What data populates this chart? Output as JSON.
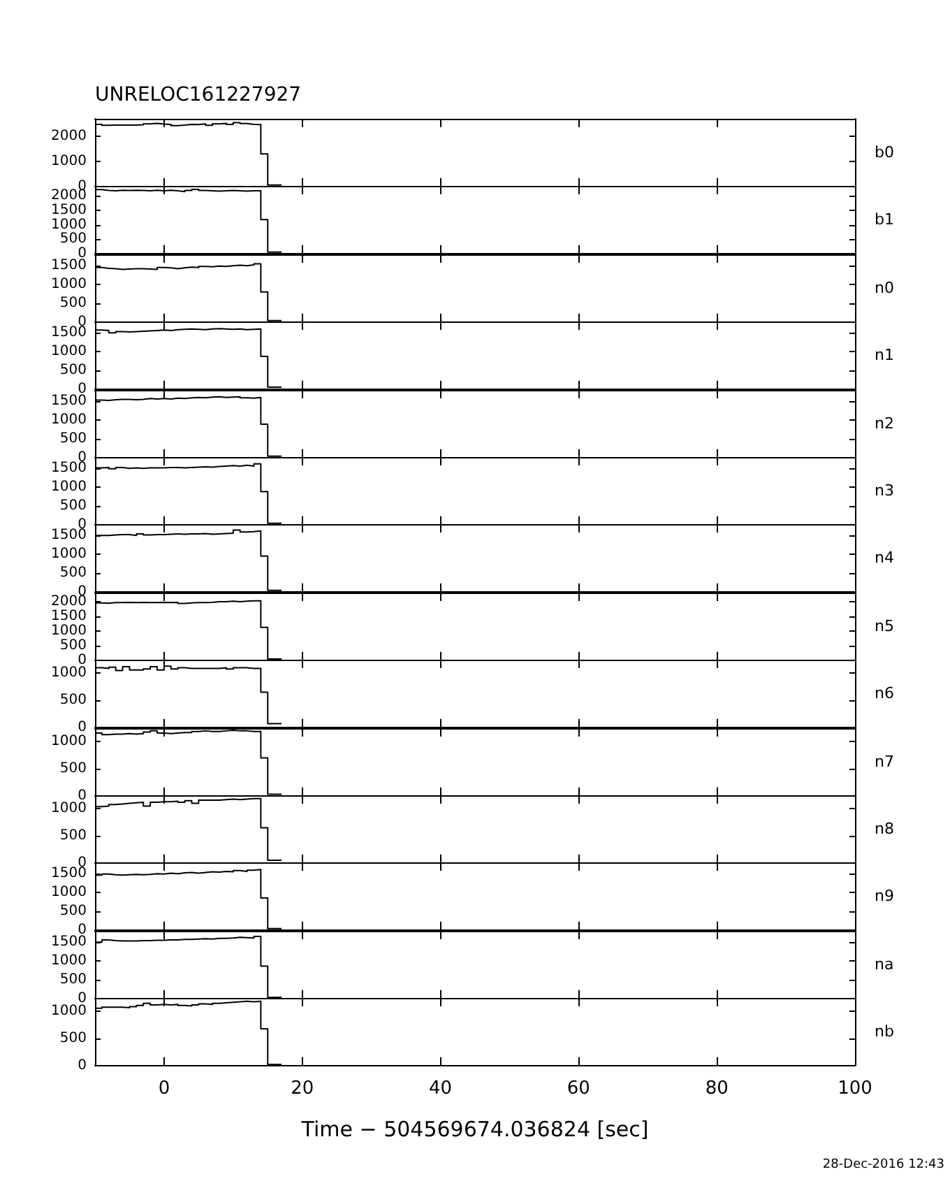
{
  "chart_data": [
    {
      "type": "histogram",
      "title": "UNRELOC161227927",
      "ylabel": "b0",
      "color": "#000000",
      "bins": [
        -10,
        -9,
        -8,
        -7,
        -6,
        -5,
        -4,
        -3,
        -2,
        -1,
        0,
        1,
        2,
        3,
        4,
        5,
        6,
        7,
        8,
        9,
        10,
        11,
        12,
        13,
        14,
        15,
        16,
        17
      ],
      "values": [
        2480,
        2440,
        2450,
        2450,
        2450,
        2450,
        2460,
        2500,
        2520,
        2490,
        2470,
        2430,
        2450,
        2480,
        2470,
        2500,
        2440,
        2500,
        2520,
        2480,
        2550,
        2510,
        2480,
        2470,
        1300,
        60,
        60
      ],
      "xlim": [
        -10,
        100
      ],
      "xticks": [
        0,
        20,
        40,
        60,
        80,
        100
      ],
      "ylim": [
        0,
        2700
      ],
      "yticks": [
        0,
        1000,
        2000
      ],
      "tick_labels": "y"
    },
    {
      "type": "histogram",
      "ylabel": "b1",
      "color": "#000000",
      "bins": [
        -10,
        -9,
        -8,
        -7,
        -6,
        -5,
        -4,
        -3,
        -2,
        -1,
        0,
        1,
        2,
        3,
        4,
        5,
        6,
        7,
        8,
        9,
        10,
        11,
        12,
        13,
        14,
        15,
        16,
        17
      ],
      "values": [
        2220,
        2190,
        2180,
        2200,
        2190,
        2200,
        2190,
        2180,
        2200,
        2180,
        2200,
        2180,
        2150,
        2190,
        2230,
        2190,
        2180,
        2170,
        2180,
        2190,
        2180,
        2170,
        2180,
        2180,
        1180,
        50,
        50
      ],
      "xlim": [
        -10,
        100
      ],
      "xticks": [
        0,
        20,
        40,
        60,
        80,
        100
      ],
      "ylim": [
        0,
        2350
      ],
      "yticks": [
        0,
        500,
        1000,
        1500,
        2000
      ],
      "tick_labels": "y"
    },
    {
      "type": "histogram",
      "ylabel": "n0",
      "color": "#000000",
      "bins": [
        -10,
        -9,
        -8,
        -7,
        -6,
        -5,
        -4,
        -3,
        -2,
        -1,
        0,
        1,
        2,
        3,
        4,
        5,
        6,
        7,
        8,
        9,
        10,
        11,
        12,
        13,
        14,
        15,
        16,
        17
      ],
      "values": [
        1450,
        1430,
        1420,
        1400,
        1410,
        1420,
        1420,
        1410,
        1400,
        1450,
        1440,
        1420,
        1440,
        1460,
        1450,
        1480,
        1470,
        1490,
        1480,
        1500,
        1510,
        1500,
        1520,
        1550,
        800,
        40,
        40
      ],
      "xlim": [
        -10,
        100
      ],
      "xticks": [
        0,
        20,
        40,
        60,
        80,
        100
      ],
      "ylim": [
        0,
        1800
      ],
      "yticks": [
        0,
        500,
        1000,
        1500
      ],
      "tick_labels": "y"
    },
    {
      "type": "histogram",
      "ylabel": "n1",
      "color": "#000000",
      "bins": [
        -10,
        -9,
        -8,
        -7,
        -6,
        -5,
        -4,
        -3,
        -2,
        -1,
        0,
        1,
        2,
        3,
        4,
        5,
        6,
        7,
        8,
        9,
        10,
        11,
        12,
        13,
        14,
        15,
        16,
        17
      ],
      "values": [
        1570,
        1560,
        1500,
        1530,
        1520,
        1530,
        1540,
        1550,
        1560,
        1570,
        1560,
        1580,
        1590,
        1600,
        1590,
        1580,
        1600,
        1610,
        1600,
        1590,
        1600,
        1580,
        1590,
        1600,
        870,
        50,
        50
      ],
      "xlim": [
        -10,
        100
      ],
      "xticks": [
        0,
        20,
        40,
        60,
        80,
        100
      ],
      "ylim": [
        0,
        1800
      ],
      "yticks": [
        0,
        500,
        1000,
        1500
      ],
      "tick_labels": "y"
    },
    {
      "type": "histogram",
      "ylabel": "n2",
      "color": "#000000",
      "bins": [
        -10,
        -9,
        -8,
        -7,
        -6,
        -5,
        -4,
        -3,
        -2,
        -1,
        0,
        1,
        2,
        3,
        4,
        5,
        6,
        7,
        8,
        9,
        10,
        11,
        12,
        13,
        14,
        15,
        16,
        17
      ],
      "values": [
        1530,
        1520,
        1540,
        1550,
        1550,
        1540,
        1550,
        1570,
        1560,
        1570,
        1560,
        1580,
        1570,
        1590,
        1600,
        1590,
        1610,
        1620,
        1600,
        1610,
        1620,
        1590,
        1580,
        1600,
        890,
        40,
        40
      ],
      "xlim": [
        -10,
        100
      ],
      "xticks": [
        0,
        20,
        40,
        60,
        80,
        100
      ],
      "ylim": [
        0,
        1800
      ],
      "yticks": [
        0,
        500,
        1000,
        1500
      ],
      "tick_labels": "y"
    },
    {
      "type": "histogram",
      "ylabel": "n3",
      "color": "#000000",
      "bins": [
        -10,
        -9,
        -8,
        -7,
        -6,
        -5,
        -4,
        -3,
        -2,
        -1,
        0,
        1,
        2,
        3,
        4,
        5,
        6,
        7,
        8,
        9,
        10,
        11,
        12,
        13,
        14,
        15,
        16,
        17
      ],
      "values": [
        1510,
        1520,
        1490,
        1520,
        1500,
        1510,
        1500,
        1510,
        1510,
        1510,
        1520,
        1520,
        1510,
        1520,
        1530,
        1540,
        1530,
        1550,
        1560,
        1570,
        1560,
        1580,
        1560,
        1620,
        880,
        40,
        40
      ],
      "xlim": [
        -10,
        100
      ],
      "xticks": [
        0,
        20,
        40,
        60,
        80,
        100
      ],
      "ylim": [
        0,
        1800
      ],
      "yticks": [
        0,
        500,
        1000,
        1500
      ],
      "tick_labels": "y"
    },
    {
      "type": "histogram",
      "ylabel": "n4",
      "color": "#000000",
      "bins": [
        -10,
        -9,
        -8,
        -7,
        -6,
        -5,
        -4,
        -3,
        -2,
        -1,
        0,
        1,
        2,
        3,
        4,
        5,
        6,
        7,
        8,
        9,
        10,
        11,
        12,
        13,
        14,
        15,
        16,
        17
      ],
      "values": [
        1500,
        1500,
        1510,
        1520,
        1520,
        1500,
        1540,
        1510,
        1520,
        1520,
        1530,
        1540,
        1530,
        1540,
        1540,
        1550,
        1530,
        1540,
        1550,
        1560,
        1640,
        1590,
        1600,
        1620,
        950,
        40,
        40
      ],
      "xlim": [
        -10,
        100
      ],
      "xticks": [
        0,
        20,
        40,
        60,
        80,
        100
      ],
      "ylim": [
        0,
        1800
      ],
      "yticks": [
        0,
        500,
        1000,
        1500
      ],
      "tick_labels": "y"
    },
    {
      "type": "histogram",
      "ylabel": "n5",
      "color": "#000000",
      "bins": [
        -10,
        -9,
        -8,
        -7,
        -6,
        -5,
        -4,
        -3,
        -2,
        -1,
        0,
        1,
        2,
        3,
        4,
        5,
        6,
        7,
        8,
        9,
        10,
        11,
        12,
        13,
        14,
        15,
        16,
        17
      ],
      "values": [
        1950,
        1940,
        1960,
        1960,
        1970,
        1960,
        1970,
        1960,
        1960,
        1970,
        1960,
        1970,
        1930,
        1950,
        1960,
        1960,
        1970,
        1990,
        1990,
        2010,
        1990,
        2010,
        2020,
        2020,
        1120,
        40,
        40
      ],
      "xlim": [
        -10,
        100
      ],
      "xticks": [
        0,
        20,
        40,
        60,
        80,
        100
      ],
      "ylim": [
        0,
        2300
      ],
      "yticks": [
        0,
        500,
        1000,
        1500,
        2000
      ],
      "tick_labels": "y"
    },
    {
      "type": "histogram",
      "ylabel": "n6",
      "color": "#000000",
      "bins": [
        -10,
        -9,
        -8,
        -7,
        -6,
        -5,
        -4,
        -3,
        -2,
        -1,
        0,
        1,
        2,
        3,
        4,
        5,
        6,
        7,
        8,
        9,
        10,
        11,
        12,
        13,
        14,
        15,
        16,
        17
      ],
      "values": [
        1100,
        1090,
        1110,
        1050,
        1120,
        1060,
        1060,
        1080,
        1120,
        1060,
        1130,
        1080,
        1100,
        1090,
        1090,
        1090,
        1090,
        1090,
        1100,
        1080,
        1100,
        1100,
        1090,
        1090,
        650,
        70,
        70
      ],
      "xlim": [
        -10,
        100
      ],
      "xticks": [
        0,
        20,
        40,
        60,
        80,
        100
      ],
      "ylim": [
        0,
        1250
      ],
      "yticks": [
        0,
        500,
        1000
      ],
      "tick_labels": "y"
    },
    {
      "type": "histogram",
      "ylabel": "n7",
      "color": "#000000",
      "bins": [
        -10,
        -9,
        -8,
        -7,
        -6,
        -5,
        -4,
        -3,
        -2,
        -1,
        0,
        1,
        2,
        3,
        4,
        5,
        6,
        7,
        8,
        9,
        10,
        11,
        12,
        13,
        14,
        15,
        16,
        17
      ],
      "values": [
        1160,
        1130,
        1140,
        1140,
        1150,
        1140,
        1150,
        1180,
        1200,
        1160,
        1150,
        1160,
        1170,
        1170,
        1190,
        1200,
        1190,
        1190,
        1200,
        1210,
        1200,
        1200,
        1190,
        1190,
        700,
        30,
        30
      ],
      "xlim": [
        -10,
        100
      ],
      "xticks": [
        0,
        20,
        40,
        60,
        80,
        100
      ],
      "ylim": [
        0,
        1250
      ],
      "yticks": [
        0,
        500,
        1000
      ],
      "tick_labels": "y"
    },
    {
      "type": "histogram",
      "ylabel": "n8",
      "color": "#000000",
      "bins": [
        -10,
        -9,
        -8,
        -7,
        -6,
        -5,
        -4,
        -3,
        -2,
        -1,
        0,
        1,
        2,
        3,
        4,
        5,
        6,
        7,
        8,
        9,
        10,
        11,
        12,
        13,
        14,
        15,
        16,
        17
      ],
      "values": [
        1040,
        1050,
        1080,
        1090,
        1100,
        1110,
        1120,
        1050,
        1120,
        1130,
        1130,
        1140,
        1120,
        1150,
        1100,
        1160,
        1160,
        1160,
        1170,
        1180,
        1170,
        1180,
        1190,
        1190,
        650,
        50,
        50
      ],
      "xlim": [
        -10,
        100
      ],
      "xticks": [
        0,
        20,
        40,
        60,
        80,
        100
      ],
      "ylim": [
        0,
        1250
      ],
      "yticks": [
        0,
        500,
        1000
      ],
      "tick_labels": "y"
    },
    {
      "type": "histogram",
      "ylabel": "n9",
      "color": "#000000",
      "bins": [
        -10,
        -9,
        -8,
        -7,
        -6,
        -5,
        -4,
        -3,
        -2,
        -1,
        0,
        1,
        2,
        3,
        4,
        5,
        6,
        7,
        8,
        9,
        10,
        11,
        12,
        13,
        14,
        15,
        16,
        17
      ],
      "values": [
        1460,
        1490,
        1470,
        1460,
        1470,
        1480,
        1470,
        1480,
        1500,
        1490,
        1510,
        1500,
        1520,
        1530,
        1510,
        1530,
        1550,
        1540,
        1560,
        1550,
        1580,
        1560,
        1590,
        1610,
        850,
        40,
        40
      ],
      "xlim": [
        -10,
        100
      ],
      "xticks": [
        0,
        20,
        40,
        60,
        80,
        100
      ],
      "ylim": [
        0,
        1800
      ],
      "yticks": [
        0,
        500,
        1000,
        1500
      ],
      "tick_labels": "y"
    },
    {
      "type": "histogram",
      "ylabel": "na",
      "color": "#000000",
      "bins": [
        -10,
        -9,
        -8,
        -7,
        -6,
        -5,
        -4,
        -3,
        -2,
        -1,
        0,
        1,
        2,
        3,
        4,
        5,
        6,
        7,
        8,
        9,
        10,
        11,
        12,
        13,
        14,
        15,
        16,
        17
      ],
      "values": [
        1500,
        1560,
        1540,
        1530,
        1530,
        1530,
        1540,
        1540,
        1550,
        1550,
        1560,
        1560,
        1570,
        1570,
        1580,
        1590,
        1580,
        1600,
        1600,
        1610,
        1630,
        1620,
        1610,
        1650,
        860,
        30,
        30
      ],
      "xlim": [
        -10,
        100
      ],
      "xticks": [
        0,
        20,
        40,
        60,
        80,
        100
      ],
      "ylim": [
        0,
        1800
      ],
      "yticks": [
        0,
        500,
        1000,
        1500
      ],
      "tick_labels": "y"
    },
    {
      "type": "histogram",
      "ylabel": "nb",
      "xlabel": "Time − 504569674.036824 [sec]",
      "annotations": [
        "28-Dec-2016 12:43"
      ],
      "color": "#000000",
      "bins": [
        -10,
        -9,
        -8,
        -7,
        -6,
        -5,
        -4,
        -3,
        -2,
        -1,
        0,
        1,
        2,
        3,
        4,
        5,
        6,
        7,
        8,
        9,
        10,
        11,
        12,
        13,
        14,
        15,
        16,
        17
      ],
      "values": [
        1060,
        1080,
        1080,
        1080,
        1070,
        1090,
        1110,
        1150,
        1120,
        1130,
        1120,
        1130,
        1110,
        1100,
        1120,
        1140,
        1130,
        1150,
        1160,
        1170,
        1180,
        1190,
        1180,
        1190,
        680,
        20,
        20
      ],
      "xlim": [
        -10,
        100
      ],
      "xticks": [
        0,
        20,
        40,
        60,
        80,
        100
      ],
      "ylim": [
        0,
        1250
      ],
      "yticks": [
        0,
        500,
        1000
      ]
    }
  ]
}
